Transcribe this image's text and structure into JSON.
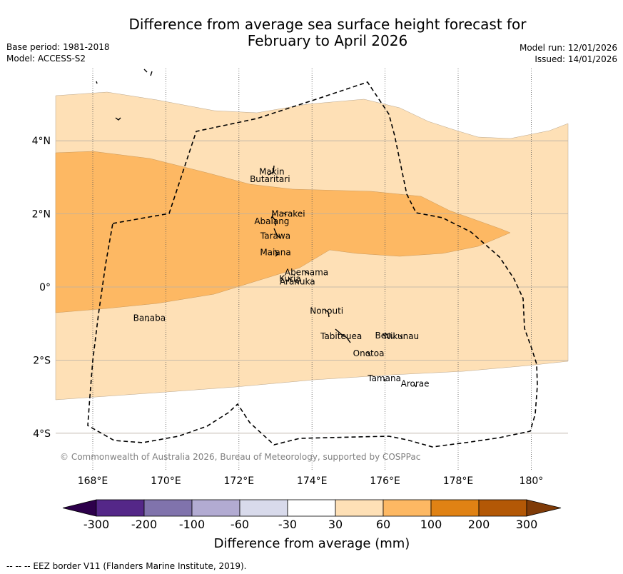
{
  "title": {
    "line1": "Difference from average sea surface height forecast for",
    "line2": "February to April 2026"
  },
  "meta": {
    "base_period": "Base period: 1981-2018",
    "model": "Model: ACCESS-S2",
    "model_run": "Model run: 12/01/2026",
    "issued": "Issued: 14/01/2026"
  },
  "map": {
    "lon_range": [
      167,
      181
    ],
    "lat_range": [
      -5,
      6
    ],
    "lon_ticks": [
      {
        "value": 168,
        "label": "168°E"
      },
      {
        "value": 170,
        "label": "170°E"
      },
      {
        "value": 172,
        "label": "172°E"
      },
      {
        "value": 174,
        "label": "174°E"
      },
      {
        "value": 176,
        "label": "176°E"
      },
      {
        "value": 178,
        "label": "178°E"
      },
      {
        "value": 180,
        "label": "180°"
      }
    ],
    "lat_ticks": [
      {
        "value": 4,
        "label": "4°N"
      },
      {
        "value": 2,
        "label": "2°N"
      },
      {
        "value": 0,
        "label": "0°"
      },
      {
        "value": -2,
        "label": "2°S"
      },
      {
        "value": -4,
        "label": "4°S"
      }
    ],
    "islands": [
      {
        "name": "Makin",
        "lon": 172.9,
        "lat": 3.15
      },
      {
        "name": "Butaritari",
        "lon": 172.85,
        "lat": 2.95
      },
      {
        "name": "Marakei",
        "lon": 173.35,
        "lat": 2.0
      },
      {
        "name": "Abaiang",
        "lon": 172.9,
        "lat": 1.8
      },
      {
        "name": "Tarawa",
        "lon": 173.0,
        "lat": 1.4
      },
      {
        "name": "Maiana",
        "lon": 173.0,
        "lat": 0.95
      },
      {
        "name": "Abemama",
        "lon": 173.85,
        "lat": 0.4
      },
      {
        "name": "Kuria",
        "lon": 173.4,
        "lat": 0.22
      },
      {
        "name": "Aranuka",
        "lon": 173.6,
        "lat": 0.15
      },
      {
        "name": "Nonouti",
        "lon": 174.4,
        "lat": -0.65
      },
      {
        "name": "Banaba",
        "lon": 169.55,
        "lat": -0.85
      },
      {
        "name": "Tabiteuea",
        "lon": 174.8,
        "lat": -1.35
      },
      {
        "name": "Beru",
        "lon": 176.0,
        "lat": -1.33
      },
      {
        "name": "Nikunau",
        "lon": 176.45,
        "lat": -1.35
      },
      {
        "name": "Onotoa",
        "lon": 175.55,
        "lat": -1.82
      },
      {
        "name": "Tamana",
        "lon": 175.98,
        "lat": -2.5
      },
      {
        "name": "Arorae",
        "lon": 176.82,
        "lat": -2.65
      }
    ],
    "regions": [
      {
        "name": "anomaly-30-60",
        "color": "#fee0b6",
        "band": "30 to 60 mm"
      },
      {
        "name": "anomaly-60-100",
        "color": "#fdb863",
        "band": "60 to 100 mm"
      }
    ],
    "copyright": "© Commonwealth of Australia 2026, Bureau of Meteorology, supported by COSPPac"
  },
  "colorbar": {
    "colors": [
      "#2d004b",
      "#542788",
      "#8073ac",
      "#b2abd2",
      "#d8daeb",
      "#ffffff",
      "#fee0b6",
      "#fdb863",
      "#e08214",
      "#b35806",
      "#7f3b08"
    ],
    "ticks": [
      "-300",
      "-200",
      "-100",
      "-60",
      "-30",
      "30",
      "60",
      "100",
      "200",
      "300"
    ],
    "label": "Difference from average (mm)"
  },
  "legend": {
    "eez_text": "--  --  -- EEZ border V11 (Flanders Marine Institute, 2019)."
  }
}
